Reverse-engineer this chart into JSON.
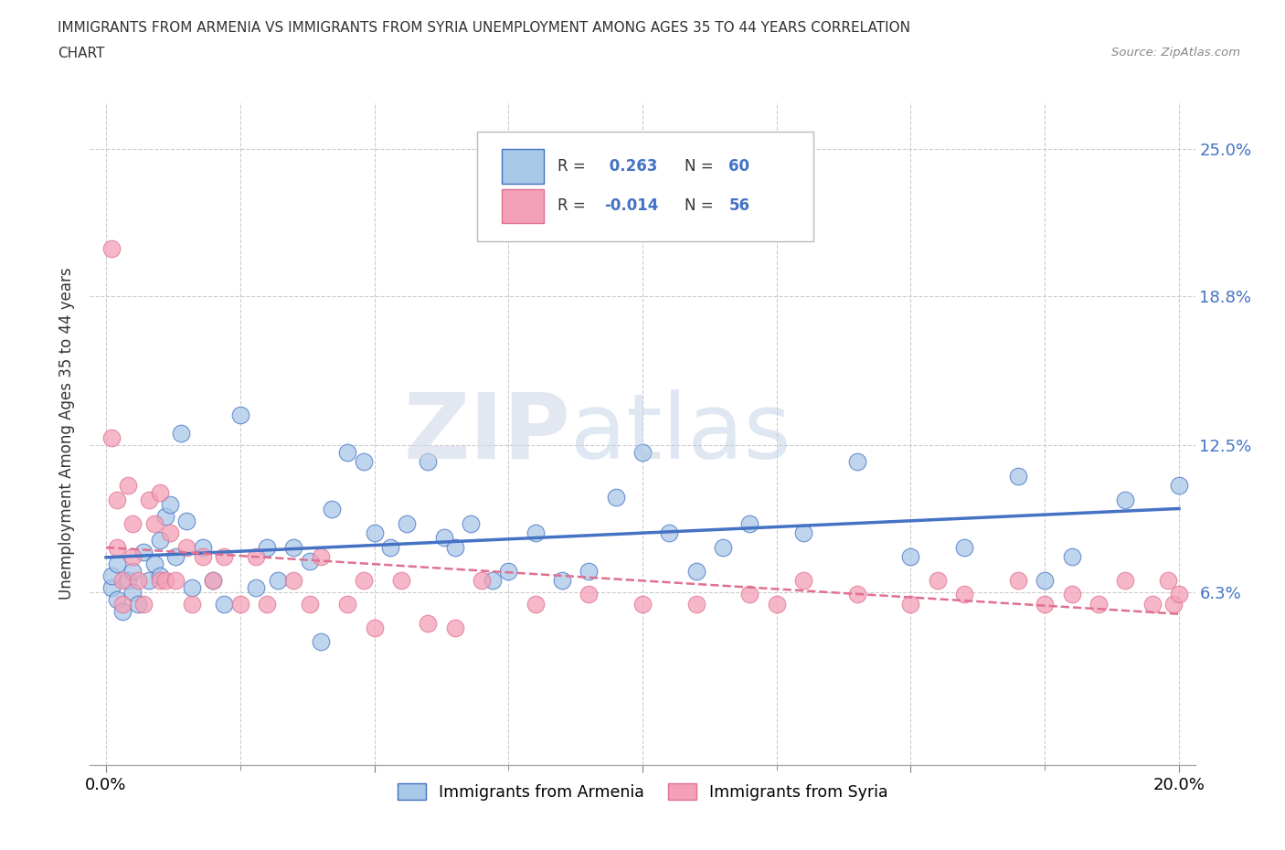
{
  "title_line1": "IMMIGRANTS FROM ARMENIA VS IMMIGRANTS FROM SYRIA UNEMPLOYMENT AMONG AGES 35 TO 44 YEARS CORRELATION",
  "title_line2": "CHART",
  "source": "Source: ZipAtlas.com",
  "ylabel": "Unemployment Among Ages 35 to 44 years",
  "xlim": [
    0.0,
    0.2
  ],
  "ylim": [
    -0.01,
    0.27
  ],
  "armenia_color": "#a8c8e8",
  "syria_color": "#f4a0b8",
  "armenia_line_color": "#4472c4",
  "syria_line_color": "#e07090",
  "armenia_R": 0.263,
  "armenia_N": 60,
  "syria_R": -0.014,
  "syria_N": 56,
  "legend_label_armenia": "Immigrants from Armenia",
  "legend_label_syria": "Immigrants from Syria",
  "armenia_x": [
    0.001,
    0.001,
    0.002,
    0.002,
    0.003,
    0.004,
    0.005,
    0.005,
    0.006,
    0.007,
    0.008,
    0.009,
    0.01,
    0.01,
    0.011,
    0.012,
    0.013,
    0.014,
    0.015,
    0.016,
    0.018,
    0.02,
    0.022,
    0.025,
    0.028,
    0.03,
    0.032,
    0.035,
    0.038,
    0.04,
    0.042,
    0.045,
    0.048,
    0.05,
    0.053,
    0.056,
    0.06,
    0.063,
    0.065,
    0.068,
    0.072,
    0.075,
    0.08,
    0.085,
    0.09,
    0.095,
    0.1,
    0.105,
    0.11,
    0.115,
    0.12,
    0.13,
    0.14,
    0.15,
    0.16,
    0.17,
    0.175,
    0.18,
    0.19,
    0.2
  ],
  "armenia_y": [
    0.065,
    0.07,
    0.06,
    0.075,
    0.055,
    0.068,
    0.072,
    0.063,
    0.058,
    0.08,
    0.068,
    0.075,
    0.085,
    0.07,
    0.095,
    0.1,
    0.078,
    0.13,
    0.093,
    0.065,
    0.082,
    0.068,
    0.058,
    0.138,
    0.065,
    0.082,
    0.068,
    0.082,
    0.076,
    0.042,
    0.098,
    0.122,
    0.118,
    0.088,
    0.082,
    0.092,
    0.118,
    0.086,
    0.082,
    0.092,
    0.068,
    0.072,
    0.088,
    0.068,
    0.072,
    0.103,
    0.122,
    0.088,
    0.072,
    0.082,
    0.092,
    0.088,
    0.118,
    0.078,
    0.082,
    0.112,
    0.068,
    0.078,
    0.102,
    0.108
  ],
  "syria_x": [
    0.001,
    0.001,
    0.002,
    0.002,
    0.003,
    0.003,
    0.004,
    0.005,
    0.005,
    0.006,
    0.007,
    0.008,
    0.009,
    0.01,
    0.01,
    0.011,
    0.012,
    0.013,
    0.015,
    0.016,
    0.018,
    0.02,
    0.022,
    0.025,
    0.028,
    0.03,
    0.035,
    0.038,
    0.04,
    0.045,
    0.048,
    0.05,
    0.055,
    0.06,
    0.065,
    0.07,
    0.08,
    0.09,
    0.1,
    0.11,
    0.12,
    0.125,
    0.13,
    0.14,
    0.15,
    0.155,
    0.16,
    0.17,
    0.175,
    0.18,
    0.185,
    0.19,
    0.195,
    0.198,
    0.199,
    0.2
  ],
  "syria_y": [
    0.208,
    0.128,
    0.102,
    0.082,
    0.068,
    0.058,
    0.108,
    0.092,
    0.078,
    0.068,
    0.058,
    0.102,
    0.092,
    0.068,
    0.105,
    0.068,
    0.088,
    0.068,
    0.082,
    0.058,
    0.078,
    0.068,
    0.078,
    0.058,
    0.078,
    0.058,
    0.068,
    0.058,
    0.078,
    0.058,
    0.068,
    0.048,
    0.068,
    0.05,
    0.048,
    0.068,
    0.058,
    0.062,
    0.058,
    0.058,
    0.062,
    0.058,
    0.068,
    0.062,
    0.058,
    0.068,
    0.062,
    0.068,
    0.058,
    0.062,
    0.058,
    0.068,
    0.058,
    0.068,
    0.058,
    0.062
  ]
}
